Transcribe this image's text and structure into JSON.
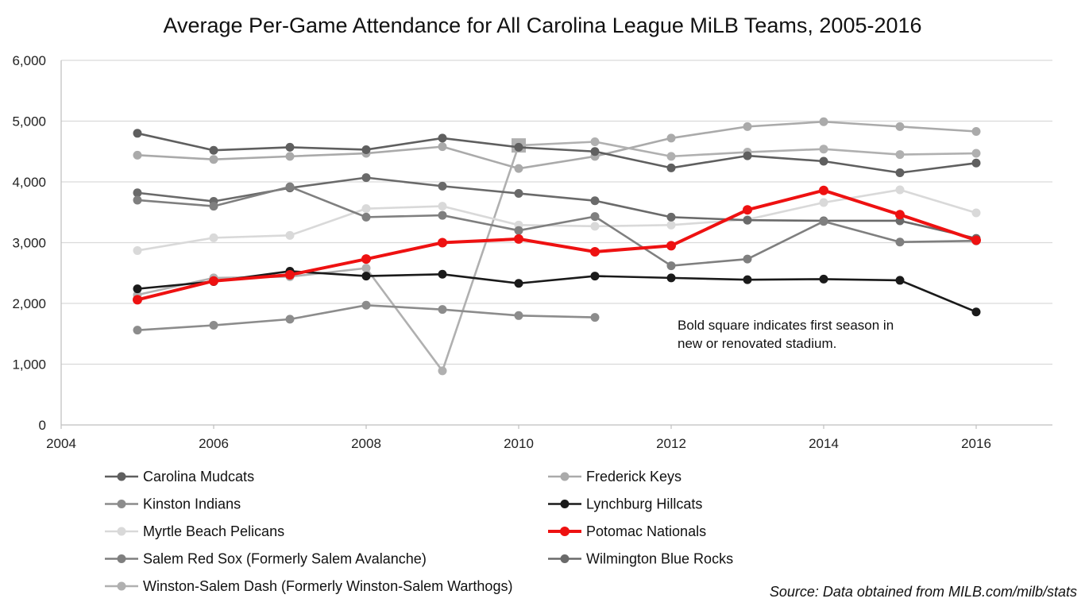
{
  "chart_data": {
    "type": "line",
    "title": "Average Per-Game Attendance for All Carolina League MiLB Teams, 2005-2016",
    "xlabel": "",
    "ylabel": "",
    "xlim": [
      2004,
      2017
    ],
    "ylim": [
      0,
      6000
    ],
    "x_ticks": [
      "2004",
      "2006",
      "2008",
      "2010",
      "2012",
      "2014",
      "2016"
    ],
    "y_ticks": [
      "0",
      "1,000",
      "2,000",
      "3,000",
      "4,000",
      "5,000",
      "6,000"
    ],
    "grid": "horizontal",
    "x": [
      2005,
      2006,
      2007,
      2008,
      2009,
      2010,
      2011,
      2012,
      2013,
      2014,
      2015,
      2016
    ],
    "series": [
      {
        "name": "Frederick Keys",
        "color": "#aaaaaa",
        "values": [
          4440,
          4370,
          4420,
          4470,
          4580,
          4220,
          4420,
          4720,
          4910,
          4990,
          4910,
          4830
        ]
      },
      {
        "name": "Winston-Salem Dash (Formerly Winston-Salem Warthogs)",
        "color": "#b0b0b0",
        "values": [
          2140,
          2420,
          2440,
          2580,
          890,
          4600,
          4660,
          4420,
          4490,
          4540,
          4450,
          4470
        ],
        "bold_square_x": 2010
      },
      {
        "name": "Carolina Mudcats",
        "color": "#5f5f5f",
        "values": [
          4800,
          4520,
          4570,
          4530,
          4720,
          4570,
          4500,
          4230,
          4430,
          4340,
          4150,
          4310
        ]
      },
      {
        "name": "Myrtle Beach Pelicans",
        "color": "#d9d9d9",
        "values": [
          2870,
          3080,
          3120,
          3560,
          3600,
          3290,
          3270,
          3290,
          3380,
          3660,
          3870,
          3490
        ]
      },
      {
        "name": "Wilmington Blue Rocks",
        "color": "#6a6a6a",
        "values": [
          3820,
          3680,
          3900,
          4070,
          3930,
          3810,
          3690,
          3420,
          3370,
          3360,
          3360,
          3070
        ]
      },
      {
        "name": "Salem Red Sox (Formerly Salem Avalanche)",
        "color": "#7f7f7f",
        "values": [
          3700,
          3600,
          3920,
          3420,
          3450,
          3200,
          3430,
          2620,
          2730,
          3350,
          3010,
          3030
        ]
      },
      {
        "name": "Kinston Indians",
        "color": "#8c8c8c",
        "values": [
          1560,
          1640,
          1740,
          1970,
          1900,
          1800,
          1770,
          null,
          null,
          null,
          null,
          null
        ]
      },
      {
        "name": "Lynchburg Hillcats",
        "color": "#1a1a1a",
        "values": [
          2240,
          2360,
          2530,
          2450,
          2480,
          2330,
          2450,
          2420,
          2390,
          2400,
          2380,
          1860
        ]
      },
      {
        "name": "Potomac Nationals",
        "color": "#ee1111",
        "emphasis": true,
        "values": [
          2060,
          2370,
          2470,
          2730,
          3000,
          3060,
          2850,
          2950,
          3540,
          3860,
          3460,
          3040
        ]
      }
    ],
    "legend": {
      "placement": "bottom",
      "columns": [
        [
          "Carolina Mudcats",
          "Kinston Indians",
          "Myrtle Beach Pelicans",
          "Salem Red Sox (Formerly Salem Avalanche)",
          "Winston-Salem Dash (Formerly Winston-Salem Warthogs)"
        ],
        [
          "Frederick Keys",
          "Lynchburg Hillcats",
          "Potomac Nationals",
          "Wilmington Blue Rocks"
        ]
      ]
    },
    "annotation_lines": [
      "Bold square indicates first season in",
      "new or renovated stadium."
    ],
    "source": "Source: Data obtained from MILB.com/milb/stats"
  }
}
